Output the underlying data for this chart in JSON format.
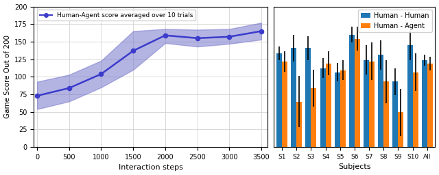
{
  "left": {
    "x": [
      0,
      500,
      1000,
      1500,
      2000,
      2500,
      3000,
      3500
    ],
    "y": [
      73,
      84,
      104,
      137,
      159,
      155,
      157,
      165
    ],
    "y_lower": [
      54,
      65,
      85,
      110,
      148,
      143,
      147,
      153
    ],
    "y_upper": [
      93,
      103,
      123,
      165,
      168,
      167,
      168,
      177
    ],
    "line_color": "#3b3bcc",
    "fill_color": "#7777cc",
    "marker": "o",
    "xlabel": "Interaction steps",
    "ylabel": "Game Score Out of 200",
    "legend": "Human-Agent score averaged over 10 trials",
    "ylim": [
      0,
      200
    ],
    "xlim": [
      -50,
      3600
    ],
    "xticks": [
      0,
      500,
      1000,
      1500,
      2000,
      2500,
      3000,
      3500
    ],
    "yticks": [
      0,
      25,
      50,
      75,
      100,
      125,
      150,
      175,
      200
    ]
  },
  "right": {
    "subjects": [
      "S1",
      "S2",
      "S3",
      "S4",
      "S5",
      "S6",
      "S7",
      "S8",
      "S9",
      "S10",
      "All"
    ],
    "hh_values": [
      140,
      148,
      148,
      118,
      112,
      168,
      130,
      138,
      98,
      152,
      130
    ],
    "ha_values": [
      128,
      68,
      88,
      125,
      115,
      162,
      128,
      98,
      52,
      112,
      125
    ],
    "hh_err": [
      10,
      20,
      18,
      15,
      14,
      12,
      22,
      22,
      20,
      22,
      8
    ],
    "ha_err": [
      15,
      38,
      28,
      18,
      15,
      18,
      28,
      32,
      35,
      28,
      10
    ],
    "hh_color": "#1f77b4",
    "ha_color": "#ff7f0e",
    "xlabel": "Subjects",
    "legend_hh": "Human - Human",
    "legend_ha": "Human - Agent",
    "bar_width": 0.38
  }
}
